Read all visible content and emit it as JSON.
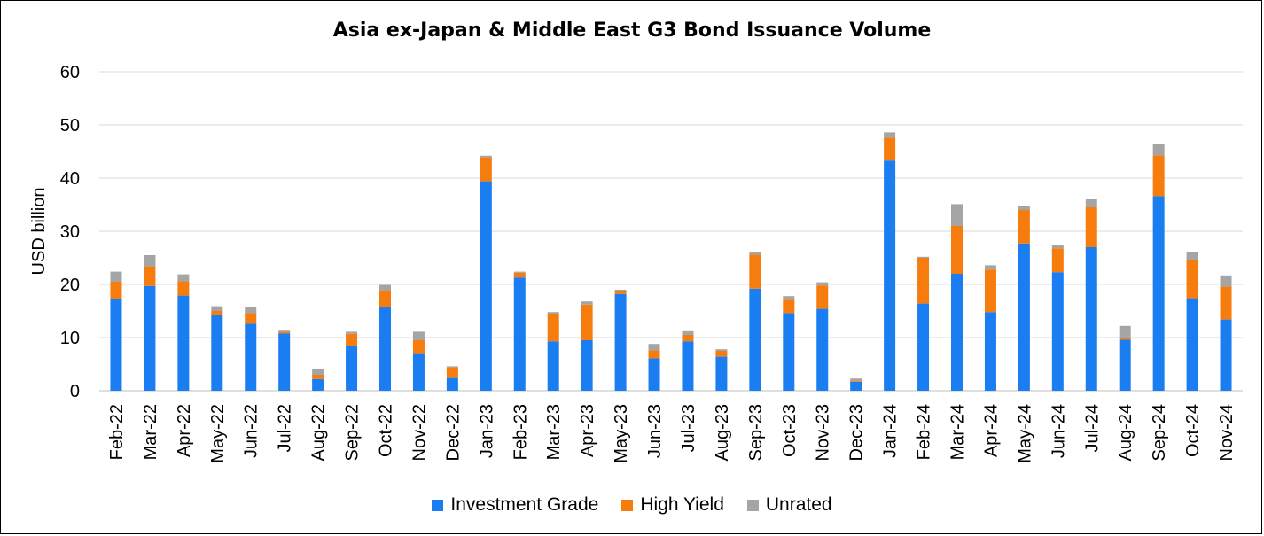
{
  "chart_data": {
    "type": "bar",
    "stacked": true,
    "title": "Asia ex-Japan & Middle East G3 Bond Issuance Volume",
    "xlabel": "",
    "ylabel": "USD billion",
    "ylim": [
      0,
      60
    ],
    "yticks": [
      "0",
      "10",
      "20",
      "30",
      "40",
      "50",
      "60"
    ],
    "grid": true,
    "legend_position": "bottom",
    "categories": [
      "Feb-22",
      "Mar-22",
      "Apr-22",
      "May-22",
      "Jun-22",
      "Jul-22",
      "Aug-22",
      "Sep-22",
      "Oct-22",
      "Nov-22",
      "Dec-22",
      "Jan-23",
      "Feb-23",
      "Mar-23",
      "Apr-23",
      "May-23",
      "Jun-23",
      "Jul-23",
      "Aug-23",
      "Sep-23",
      "Oct-23",
      "Nov-23",
      "Dec-23",
      "Jan-24",
      "Feb-24",
      "Mar-24",
      "Apr-24",
      "May-24",
      "Jun-24",
      "Jul-24",
      "Aug-24",
      "Sep-24",
      "Oct-24",
      "Nov-24"
    ],
    "series": [
      {
        "name": "Investment Grade",
        "color": "#1a7ef2",
        "values": [
          17.2,
          19.7,
          17.9,
          14.2,
          12.6,
          10.8,
          2.2,
          8.4,
          15.7,
          6.9,
          2.4,
          39.4,
          21.3,
          9.3,
          9.5,
          18.2,
          6.1,
          9.3,
          6.4,
          19.2,
          14.6,
          15.4,
          1.7,
          43.3,
          16.4,
          22.0,
          14.8,
          27.7,
          22.3,
          27.0,
          9.6,
          36.6,
          17.4,
          13.4
        ]
      },
      {
        "name": "High Yield",
        "color": "#f57c0d",
        "values": [
          3.3,
          3.7,
          2.7,
          0.8,
          2.0,
          0.3,
          0.8,
          2.3,
          3.2,
          2.6,
          2.0,
          4.5,
          0.9,
          5.2,
          6.7,
          0.6,
          1.5,
          1.2,
          1.1,
          6.4,
          2.5,
          4.4,
          0.2,
          4.3,
          8.6,
          9.0,
          8.0,
          6.3,
          4.5,
          7.5,
          0.3,
          7.7,
          7.2,
          6.2
        ]
      },
      {
        "name": "Unrated",
        "color": "#a5a5a5",
        "values": [
          1.9,
          2.1,
          1.3,
          0.9,
          1.2,
          0.2,
          1.0,
          0.4,
          1.0,
          1.6,
          0.2,
          0.3,
          0.2,
          0.3,
          0.6,
          0.2,
          1.2,
          0.7,
          0.3,
          0.5,
          0.7,
          0.6,
          0.4,
          1.0,
          0.2,
          4.1,
          0.8,
          0.7,
          0.7,
          1.5,
          2.3,
          2.1,
          1.4,
          2.1
        ]
      }
    ]
  }
}
